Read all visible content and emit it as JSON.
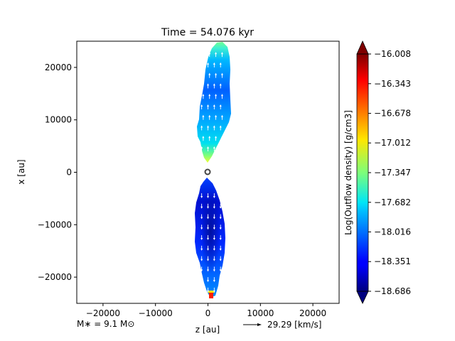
{
  "chart_data": {
    "type": "heatmap",
    "title": "Time = 54.076 kyr",
    "xlabel": "z [au]",
    "ylabel": "x [au]",
    "xlim": [
      -25000,
      25000
    ],
    "ylim": [
      -25000,
      25000
    ],
    "x_ticks": [
      {
        "value": -20000,
        "label": "−20000"
      },
      {
        "value": -10000,
        "label": "−10000"
      },
      {
        "value": 0,
        "label": "0"
      },
      {
        "value": 10000,
        "label": "10000"
      },
      {
        "value": 20000,
        "label": "20000"
      }
    ],
    "y_ticks": [
      {
        "value": 20000,
        "label": "20000"
      },
      {
        "value": 10000,
        "label": "10000"
      },
      {
        "value": 0,
        "label": "0"
      },
      {
        "value": -10000,
        "label": "−10000"
      },
      {
        "value": -20000,
        "label": "−20000"
      }
    ],
    "colorbar": {
      "label": "Log(Outflow density) [g/cm3]",
      "min": -18.686,
      "max": -16.008,
      "colormap": "jet",
      "tick_labels": [
        "−16.008",
        "−16.343",
        "−16.678",
        "−17.012",
        "−17.347",
        "−17.682",
        "−18.016",
        "−18.351",
        "−18.686"
      ],
      "tick_values": [
        -16.008,
        -16.343,
        -16.678,
        -17.012,
        -17.347,
        -17.682,
        -18.016,
        -18.351,
        -18.686
      ]
    },
    "outflow_lobes": [
      {
        "name": "upper",
        "x_range": [
          -2200,
          4000
        ],
        "y_range": [
          1000,
          24500
        ]
      },
      {
        "name": "lower",
        "x_range": [
          -2500,
          3500
        ],
        "y_range": [
          -24500,
          -1500
        ]
      }
    ],
    "star_position": [
      0,
      0
    ],
    "annotations": {
      "mass_label": "M∗ = 9.1 M⊙",
      "velocity_ref_label": "29.29 [km/s]"
    }
  }
}
